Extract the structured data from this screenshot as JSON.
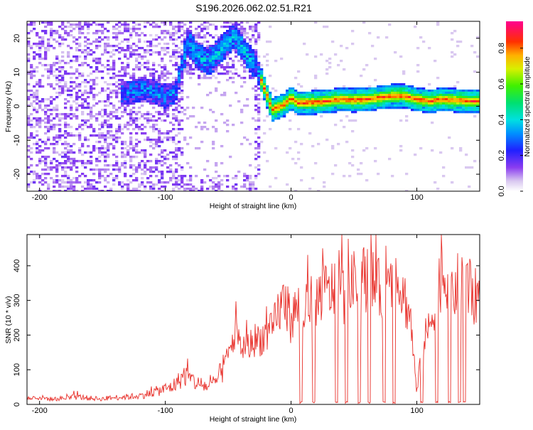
{
  "figure_title": "S196.2026.062.02.51.R21",
  "chart_data": [
    {
      "type": "heatmap",
      "panel": "spectrogram",
      "xlabel": "Height of straight line (km)",
      "ylabel": "Frequency (Hz)",
      "xlim": [
        -210,
        150
      ],
      "ylim": [
        -25,
        25
      ],
      "x_ticks": [
        -200,
        -100,
        0,
        100
      ],
      "y_ticks": [
        -20,
        -10,
        0,
        10,
        20
      ],
      "colorbar": {
        "label": "Normalized spectral amplitude",
        "range": [
          0.0,
          0.95
        ],
        "ticks": [
          "0.0",
          "0.2",
          "0.4",
          "0.6",
          "0.8"
        ],
        "colormap": "rainbow (white/violet low to magenta high)"
      },
      "series": [
        {
          "name": "dominant-frequency-ridge",
          "x": [
            -130,
            -115,
            -100,
            -92,
            -82,
            -75,
            -65,
            -55,
            -45,
            -35,
            -28,
            -15,
            -5,
            0,
            5,
            10,
            20,
            30,
            40,
            50,
            60,
            70,
            80,
            90,
            100,
            110,
            120,
            130,
            140,
            148
          ],
          "y": [
            4,
            5,
            3,
            4,
            19,
            15,
            13,
            17,
            21,
            15,
            12,
            -1,
            0.5,
            2.5,
            1,
            1,
            1.2,
            1.5,
            2,
            1.8,
            2,
            2.5,
            3,
            3,
            2,
            1.5,
            2,
            1.8,
            1.5,
            1.5
          ]
        }
      ]
    },
    {
      "type": "line",
      "panel": "snr",
      "xlabel": "Height of straight line (km)",
      "ylabel": "SNR (10 * v/v)",
      "xlim": [
        -210,
        150
      ],
      "ylim": [
        0,
        490
      ],
      "x_ticks": [
        -200,
        -100,
        0,
        100
      ],
      "y_ticks": [
        0,
        100,
        200,
        300,
        400
      ],
      "color": "#e8302a",
      "series": [
        {
          "name": "SNR",
          "x": [
            -210,
            -200,
            -190,
            -180,
            -170,
            -160,
            -150,
            -140,
            -130,
            -120,
            -110,
            -100,
            -95,
            -90,
            -85,
            -80,
            -75,
            -70,
            -65,
            -60,
            -55,
            -50,
            -45,
            -40,
            -35,
            -30,
            -25,
            -20,
            -15,
            -10,
            -5,
            0,
            5,
            10,
            15,
            20,
            25,
            30,
            35,
            40,
            45,
            50,
            55,
            60,
            65,
            70,
            75,
            80,
            85,
            90,
            95,
            100,
            105,
            110,
            115,
            120,
            125,
            130,
            135,
            140,
            145,
            150
          ],
          "values": [
            18,
            20,
            15,
            18,
            22,
            18,
            16,
            20,
            22,
            25,
            35,
            45,
            50,
            65,
            85,
            75,
            60,
            55,
            50,
            65,
            95,
            140,
            200,
            170,
            160,
            185,
            190,
            200,
            210,
            270,
            300,
            240,
            285,
            260,
            295,
            300,
            330,
            320,
            340,
            310,
            330,
            350,
            360,
            365,
            350,
            330,
            300,
            340,
            350,
            310,
            250,
            30,
            180,
            220,
            310,
            380,
            360,
            330,
            360,
            350,
            300,
            330
          ]
        }
      ],
      "dropouts_x": [
        8,
        18,
        36,
        44,
        54,
        62,
        74,
        82,
        104,
        116,
        126,
        134,
        138
      ]
    }
  ]
}
